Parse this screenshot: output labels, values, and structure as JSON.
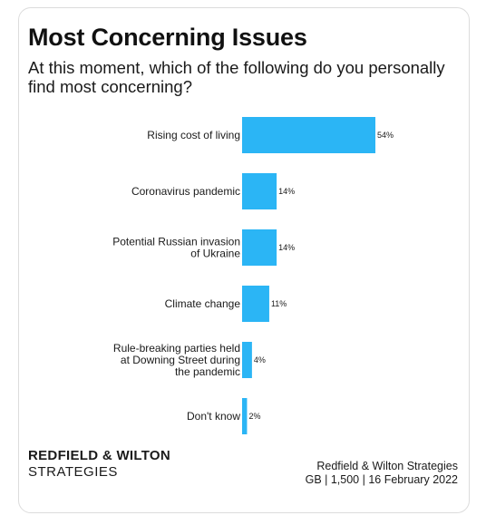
{
  "title": "Most Concerning Issues",
  "subtitle": "At this moment, which of the following do you personally find most concerning?",
  "logo": {
    "line1": "REDFIELD & WILTON",
    "line2": "STRATEGIES"
  },
  "source": {
    "line1": "Redfield & Wilton Strategies",
    "line2": "GB | 1,500 | 16 February 2022"
  },
  "bar_color": "#2bb5f5",
  "chart_data": {
    "type": "bar",
    "orientation": "horizontal",
    "title": "Most Concerning Issues",
    "subtitle": "At this moment, which of the following do you personally find most concerning?",
    "categories": [
      "Rising cost of living",
      "Coronavirus pandemic",
      "Potential Russian invasion of Ukraine",
      "Climate change",
      "Rule-breaking parties held at Downing Street during the pandemic",
      "Don't know"
    ],
    "category_lines": [
      [
        "Rising cost of living"
      ],
      [
        "Coronavirus pandemic"
      ],
      [
        "Potential Russian invasion",
        "of Ukraine"
      ],
      [
        "Climate change"
      ],
      [
        "Rule-breaking parties held",
        "at Downing Street during",
        "the pandemic"
      ],
      [
        "Don't know"
      ]
    ],
    "values": [
      54,
      14,
      14,
      11,
      4,
      2
    ],
    "value_labels": [
      "54%",
      "14%",
      "14%",
      "11%",
      "4%",
      "2%"
    ],
    "unit": "%",
    "xlim": [
      0,
      54
    ],
    "grid": false,
    "legend": "none"
  }
}
